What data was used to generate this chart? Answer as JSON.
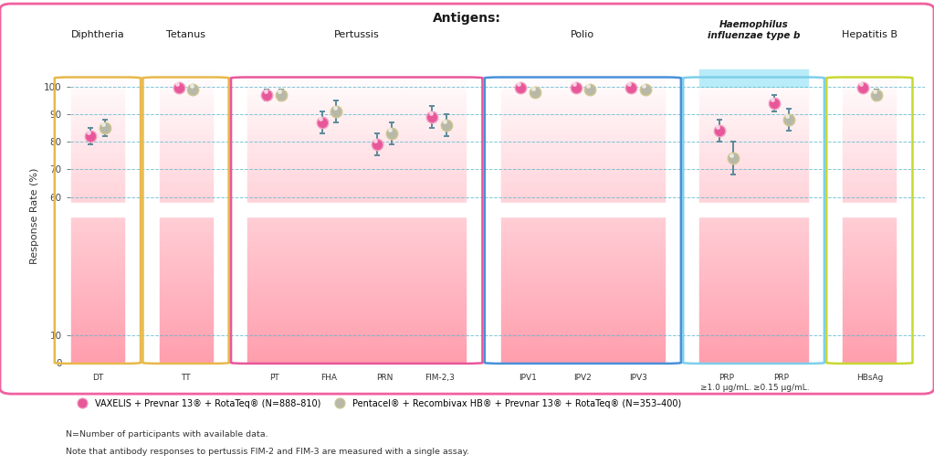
{
  "title": "Antigens:",
  "ylabel": "Response Rate (%)",
  "background_color": "#ffffff",
  "groups": [
    {
      "name": "Diphtheria",
      "box_color": "#e8b84b",
      "header_bg": null,
      "italic_header": false,
      "antigens": [
        "DT"
      ],
      "antigen_labels": [
        "DT"
      ],
      "vaxelis": [
        82
      ],
      "vaxelis_lo": [
        79
      ],
      "vaxelis_hi": [
        85
      ],
      "pentacel": [
        85
      ],
      "pentacel_lo": [
        82
      ],
      "pentacel_hi": [
        88
      ]
    },
    {
      "name": "Tetanus",
      "box_color": "#e8b84b",
      "header_bg": null,
      "italic_header": false,
      "antigens": [
        "TT"
      ],
      "antigen_labels": [
        "TT"
      ],
      "vaxelis": [
        99.5
      ],
      "vaxelis_lo": [
        99
      ],
      "vaxelis_hi": [
        100
      ],
      "pentacel": [
        99
      ],
      "pentacel_lo": [
        98
      ],
      "pentacel_hi": [
        100
      ]
    },
    {
      "name": "Pertussis",
      "box_color": "#e8579a",
      "header_bg": null,
      "italic_header": false,
      "antigens": [
        "PT",
        "FHA",
        "PRN",
        "FIM-2,3"
      ],
      "antigen_labels": [
        "PT",
        "FHA",
        "PRN",
        "FIM-2,3"
      ],
      "vaxelis": [
        97,
        87,
        79,
        89
      ],
      "vaxelis_lo": [
        95,
        83,
        75,
        85
      ],
      "vaxelis_hi": [
        99,
        91,
        83,
        93
      ],
      "pentacel": [
        97,
        91,
        83,
        86
      ],
      "pentacel_lo": [
        95,
        87,
        79,
        82
      ],
      "pentacel_hi": [
        99,
        95,
        87,
        90
      ]
    },
    {
      "name": "Polio",
      "box_color": "#4a90d9",
      "header_bg": null,
      "italic_header": false,
      "antigens": [
        "IPV1",
        "IPV2",
        "IPV3"
      ],
      "antigen_labels": [
        "IPV1",
        "IPV2",
        "IPV3"
      ],
      "vaxelis": [
        99.5,
        99.5,
        99.5
      ],
      "vaxelis_lo": [
        99,
        99,
        99
      ],
      "vaxelis_hi": [
        100,
        100,
        100
      ],
      "pentacel": [
        98,
        99,
        99
      ],
      "pentacel_lo": [
        97,
        98,
        98
      ],
      "pentacel_hi": [
        99,
        100,
        100
      ]
    },
    {
      "name": "Haemophilus\ninfluenzae type b",
      "box_color": "#7ecfea",
      "header_bg": "#b8ecf8",
      "italic_header": true,
      "antigens": [
        "PRP_1",
        "PRP_2"
      ],
      "antigen_labels": [
        "PRP\n≥1.0 µg/mL.",
        "PRP\n≥0.15 µg/mL."
      ],
      "vaxelis": [
        84,
        94
      ],
      "vaxelis_lo": [
        80,
        91
      ],
      "vaxelis_hi": [
        88,
        97
      ],
      "pentacel": [
        74,
        88
      ],
      "pentacel_lo": [
        68,
        84
      ],
      "pentacel_hi": [
        80,
        92
      ]
    },
    {
      "name": "Hepatitis B",
      "box_color": "#c8d832",
      "header_bg": null,
      "italic_header": false,
      "antigens": [
        "HBsAg"
      ],
      "antigen_labels": [
        "HBsAg"
      ],
      "vaxelis": [
        99.5
      ],
      "vaxelis_lo": [
        99
      ],
      "vaxelis_hi": [
        100
      ],
      "pentacel": [
        97
      ],
      "pentacel_lo": [
        95
      ],
      "pentacel_hi": [
        99
      ]
    }
  ],
  "vaxelis_color": "#e8579a",
  "vaxelis_edge": "#f0a0c0",
  "pentacel_color": "#b8b8a8",
  "pentacel_edge": "#d0c890",
  "error_bar_color": "#5a8a9a",
  "legend_vaxelis": "VAXELIS + Prevnar 13® + RotaTeq® (N=888–810)",
  "legend_pentacel": "Pentacel® + Recombivax HB® + Prevnar 13® + RotaTeq® (N=353–400)",
  "footnote1": "N=Number of participants with available data.",
  "footnote2": "Note that antibody responses to pertussis FIM-2 and FIM-3 are measured with a single assay."
}
